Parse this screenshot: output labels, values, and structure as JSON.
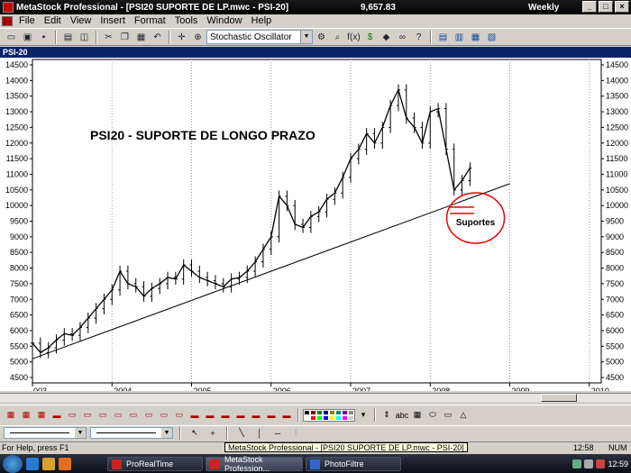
{
  "window": {
    "title": "MetaStock Professional - [PSI20 SUPORTE DE LP.mwc - PSI-20]",
    "price": "9,657.83",
    "period": "Weekly",
    "buttons": [
      "_",
      "□",
      "×"
    ]
  },
  "menu": [
    "File",
    "Edit",
    "View",
    "Insert",
    "Format",
    "Tools",
    "Window",
    "Help"
  ],
  "toolbar": {
    "indicator_select": "Stochastic Oscillator",
    "fx_label": "f(x)"
  },
  "doc_tab": "PSI-20",
  "chart_data": {
    "type": "bar",
    "title": "PSI20 - SUPORTE DE LONGO PRAZO",
    "annotation": "Suportes",
    "y_ticks": [
      "14500",
      "14000",
      "13500",
      "13000",
      "12500",
      "12000",
      "11500",
      "11000",
      "10500",
      "10000",
      "9500",
      "9000",
      "8500",
      "8000",
      "7500",
      "7000",
      "6500",
      "6000",
      "5500",
      "5000",
      "4500"
    ],
    "x_ticks": [
      "003",
      "2004",
      "2005",
      "2006",
      "2007",
      "2008",
      "2009",
      "2010"
    ],
    "ylim": [
      4500,
      14500
    ],
    "grid": "vertical dotted",
    "series": [
      {
        "x": [
          2003.0,
          2003.1,
          2003.2,
          2003.3,
          2003.4,
          2003.5,
          2003.6,
          2003.7,
          2003.8,
          2003.9,
          2004.0,
          2004.1,
          2004.2,
          2004.3,
          2004.4,
          2004.5,
          2004.6,
          2004.7,
          2004.8,
          2004.9,
          2005.0,
          2005.1,
          2005.2,
          2005.3,
          2005.4,
          2005.5,
          2005.6,
          2005.7,
          2005.8,
          2005.9,
          2006.0,
          2006.1,
          2006.2,
          2006.3,
          2006.4,
          2006.5,
          2006.6,
          2006.7,
          2006.8,
          2006.9,
          2007.0,
          2007.1,
          2007.2,
          2007.3,
          2007.4,
          2007.5,
          2007.6,
          2007.7,
          2007.8,
          2007.9,
          2008.0,
          2008.1,
          2008.2,
          2008.3,
          2008.4,
          2008.5
        ],
        "values": [
          5600,
          5300,
          5450,
          5700,
          5900,
          5850,
          6100,
          6400,
          6700,
          7000,
          7300,
          7900,
          7500,
          7400,
          7100,
          7350,
          7500,
          7700,
          7650,
          8100,
          7900,
          7700,
          7600,
          7500,
          7400,
          7650,
          7700,
          7900,
          8200,
          8600,
          9000,
          10300,
          10000,
          9400,
          9300,
          9650,
          9800,
          10200,
          10400,
          10900,
          11500,
          11800,
          12300,
          12000,
          12500,
          13200,
          13700,
          12800,
          12500,
          12000,
          13000,
          13100,
          11800,
          10500,
          10800,
          11200
        ]
      }
    ],
    "trendline": {
      "x": [
        2003.0,
        2009.0
      ],
      "values": [
        5100,
        10700
      ]
    },
    "support_levels": [
      9950,
      9750
    ]
  },
  "bottom_toolbar": {
    "text_tool": "abc"
  },
  "status": {
    "help": "For Help, press F1",
    "tooltip": "MetaStock Professional - [PSI20 SUPORTE DE LP.mwc - PSI-20]",
    "time": "12:58",
    "num": "NUM"
  },
  "taskbar": {
    "tasks": [
      "ProRealTime",
      "MetaStock Profession...",
      "PhotoFiltre"
    ],
    "clock": "12:59",
    "colors": {
      "accent": "#0a246a"
    }
  }
}
